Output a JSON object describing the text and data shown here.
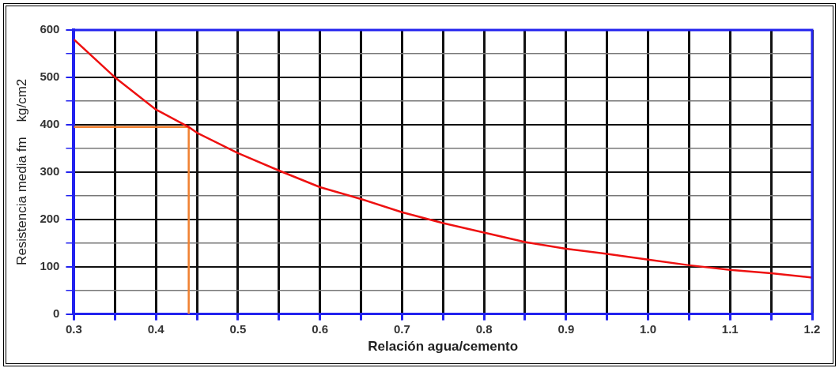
{
  "chart_data": {
    "type": "line",
    "xlabel": "Relación agua/cemento",
    "ylabel": "Resistencia media fm    kg/cm2",
    "xlim": [
      0.3,
      1.2
    ],
    "xticks": [
      0.3,
      {
        "value": 0.35,
        "label": null
      },
      0.4,
      {
        "value": 0.45,
        "label": null
      },
      0.5,
      {
        "value": 0.55,
        "label": null
      },
      0.6,
      {
        "value": 0.65,
        "label": null
      },
      0.7,
      {
        "value": 0.75,
        "label": null
      },
      0.8,
      {
        "value": 0.85,
        "label": null
      },
      0.9,
      {
        "value": 0.95,
        "label": null
      },
      {
        "value": 1,
        "label": "1.0"
      },
      {
        "value": 1.05,
        "label": null
      },
      1.1,
      {
        "value": 1.15,
        "label": null
      },
      1.2
    ],
    "ylim": [
      0,
      600
    ],
    "yticks": [
      0,
      {
        "value": 50,
        "label": null
      },
      100,
      {
        "value": 150,
        "label": null
      },
      200,
      {
        "value": 250,
        "label": null
      },
      300,
      {
        "value": 350,
        "label": null
      },
      400,
      {
        "value": 450,
        "label": null
      },
      500,
      {
        "value": 550,
        "label": null
      },
      600
    ],
    "grid": true,
    "legend": false,
    "marker": "none",
    "line_style": "solid",
    "series": [
      {
        "color": "#ee1111",
        "x": [
          0.3,
          0.35,
          0.4,
          0.44,
          0.45,
          0.5,
          0.55,
          0.6,
          0.65,
          0.7,
          0.75,
          0.8,
          0.85,
          0.9,
          0.95,
          1.0,
          1.05,
          1.1,
          1.15,
          1.2
        ],
        "values": [
          580,
          500,
          432,
          395,
          383,
          340,
          303,
          268,
          243,
          215,
          192,
          172,
          152,
          138,
          127,
          115,
          103,
          93,
          86,
          77
        ]
      },
      {
        "color": "#f08030",
        "x": [
          0.3,
          0.44,
          0.44
        ],
        "values": [
          395,
          395,
          0
        ]
      }
    ]
  }
}
